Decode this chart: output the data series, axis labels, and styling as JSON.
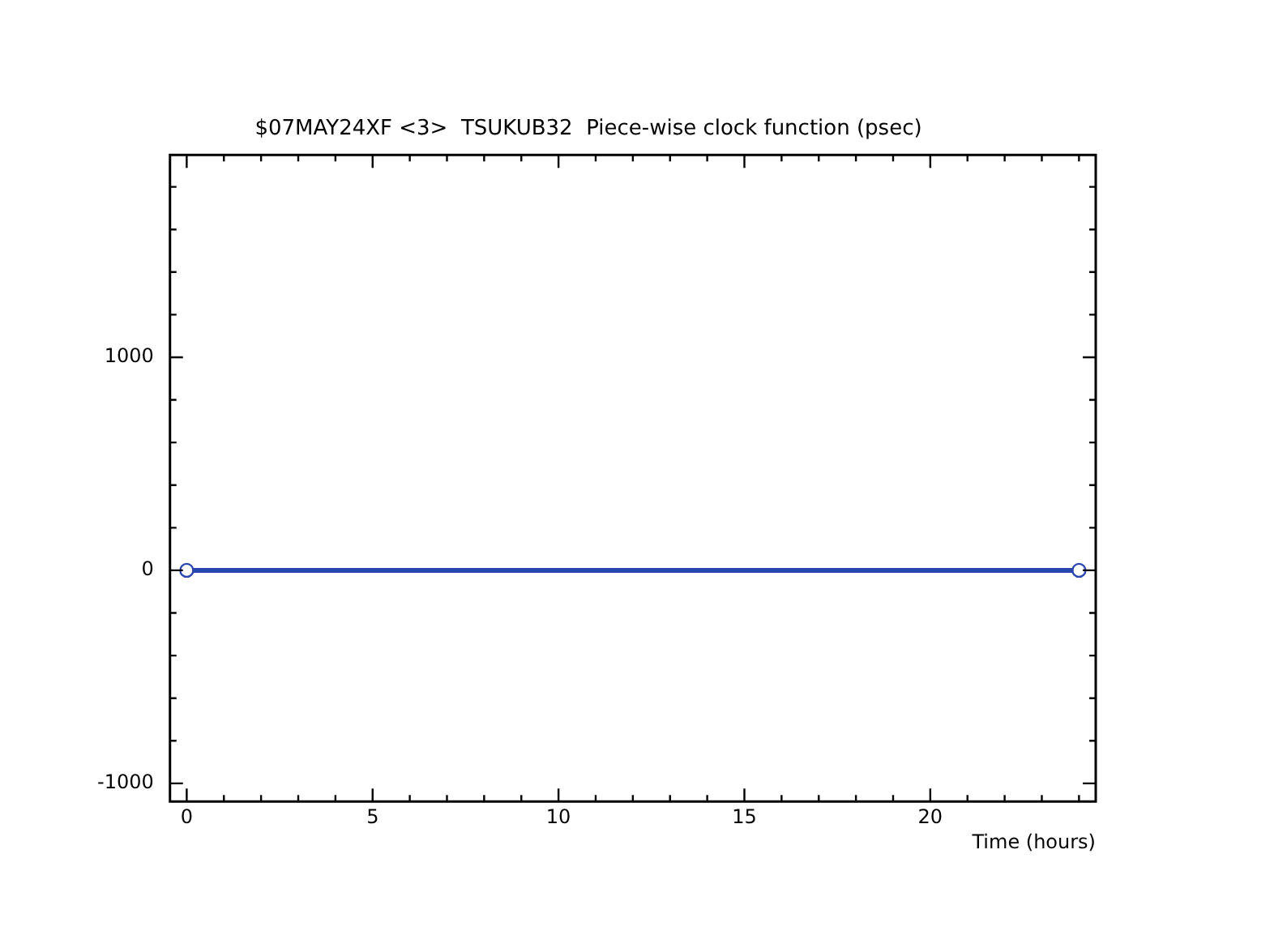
{
  "chart_data": {
    "type": "line",
    "title": "$07MAY24XF <3>  TSUKUB32  Piece-wise clock function (psec)",
    "xlabel": "Time (hours)",
    "x": [
      0,
      24
    ],
    "series": [
      {
        "color": "#2a46b0",
        "values": [
          0,
          0
        ]
      }
    ],
    "marker": "circle",
    "line_style": "solid",
    "legend": false,
    "grid": false,
    "xlim": [
      -0.45,
      24.45
    ],
    "ylim": [
      -1085,
      1950
    ],
    "xticks": [
      0,
      {
        "value": 1,
        "label": null
      },
      {
        "value": 2,
        "label": null
      },
      {
        "value": 3,
        "label": null
      },
      {
        "value": 4,
        "label": null
      },
      5,
      {
        "value": 6,
        "label": null
      },
      {
        "value": 7,
        "label": null
      },
      {
        "value": 8,
        "label": null
      },
      {
        "value": 9,
        "label": null
      },
      10,
      {
        "value": 11,
        "label": null
      },
      {
        "value": 12,
        "label": null
      },
      {
        "value": 13,
        "label": null
      },
      {
        "value": 14,
        "label": null
      },
      15,
      {
        "value": 16,
        "label": null
      },
      {
        "value": 17,
        "label": null
      },
      {
        "value": 18,
        "label": null
      },
      {
        "value": 19,
        "label": null
      },
      20,
      {
        "value": 21,
        "label": null
      },
      {
        "value": 22,
        "label": null
      },
      {
        "value": 23,
        "label": null
      },
      {
        "value": 24,
        "label": null
      }
    ],
    "yticks": [
      -1000,
      {
        "value": -800,
        "label": null
      },
      {
        "value": -600,
        "label": null
      },
      {
        "value": -400,
        "label": null
      },
      {
        "value": -200,
        "label": null
      },
      0,
      {
        "value": 200,
        "label": null
      },
      {
        "value": 400,
        "label": null
      },
      {
        "value": 600,
        "label": null
      },
      {
        "value": 800,
        "label": null
      },
      1000,
      {
        "value": 1200,
        "label": null
      },
      {
        "value": 1400,
        "label": null
      },
      {
        "value": 1600,
        "label": null
      },
      {
        "value": 1800,
        "label": null
      }
    ]
  }
}
